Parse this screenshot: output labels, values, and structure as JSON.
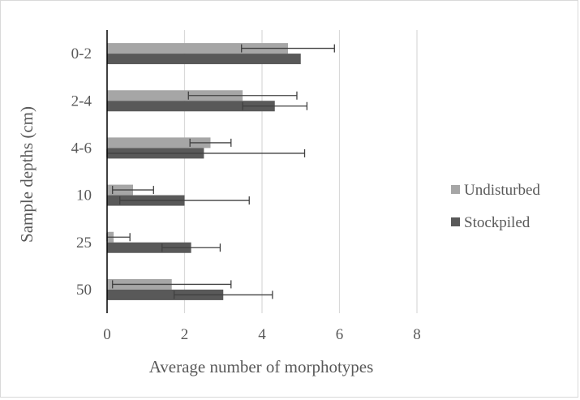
{
  "chart_data": {
    "type": "bar",
    "orientation": "horizontal",
    "categories": [
      "0-2",
      "2-4",
      "4-6",
      "10",
      "25",
      "50"
    ],
    "series": [
      {
        "name": "Undisturbed",
        "color": "#a6a6a6",
        "values": [
          4.67,
          3.5,
          2.67,
          0.67,
          0.17,
          1.67
        ],
        "error": [
          1.2,
          1.4,
          0.53,
          0.53,
          0.42,
          1.53
        ]
      },
      {
        "name": "Stockpiled",
        "color": "#595959",
        "values": [
          5.0,
          4.33,
          2.5,
          2.0,
          2.17,
          3.0
        ],
        "error": [
          0,
          0.83,
          2.6,
          1.67,
          0.75,
          1.27
        ]
      }
    ],
    "xlabel": "Average number of morphotypes",
    "ylabel": "Sample depths (cm)",
    "xlim": [
      0,
      8
    ],
    "xticks": [
      "0",
      "2",
      "4",
      "6",
      "8"
    ],
    "grid": "vertical",
    "legend": "right",
    "gridline_color": "#d9d9d9",
    "axis_color": "#000000",
    "errorbar_color": "#404040"
  }
}
